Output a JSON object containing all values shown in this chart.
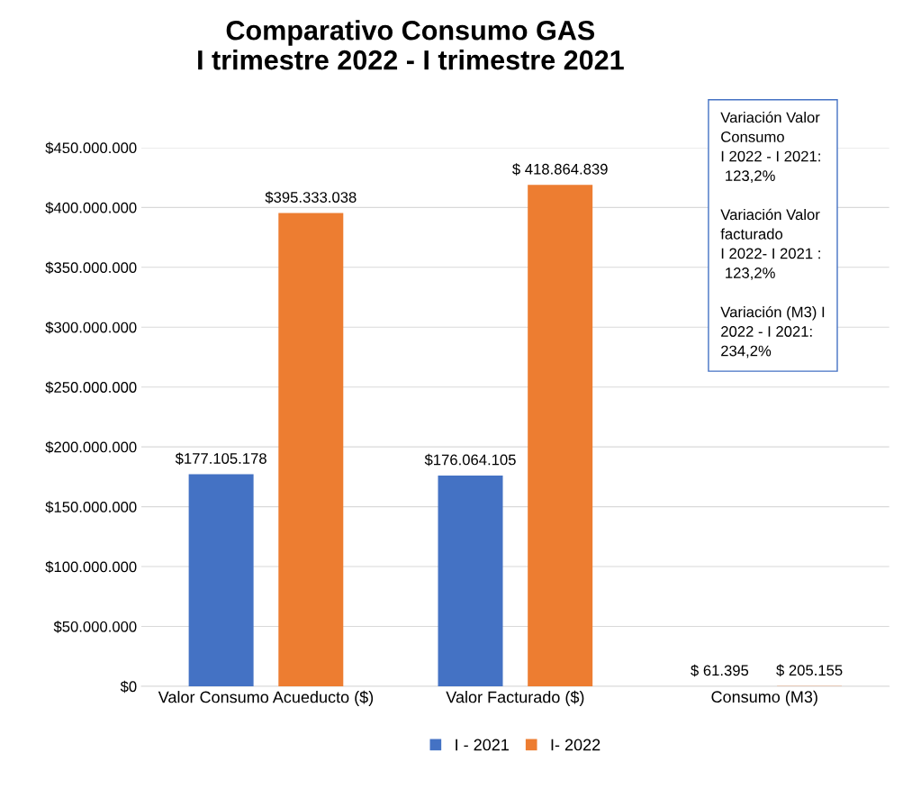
{
  "chart_data": {
    "type": "bar",
    "title": "Comparativo Consumo GAS\nI trimestre 2022 - I trimestre 2021",
    "categories": [
      "Valor Consumo Acueducto ($)",
      "Valor Facturado ($)",
      "Consumo (M3)"
    ],
    "series": [
      {
        "name": "I - 2021",
        "color": "#4472c4",
        "values": [
          177105178,
          176064105,
          61395
        ],
        "value_labels": [
          "$177.105.178",
          "$176.064.105",
          "$ 61.395"
        ]
      },
      {
        "name": "I- 2022",
        "color": "#ed7d31",
        "values": [
          395333038,
          418864839,
          205155
        ],
        "value_labels": [
          "$395.333.038",
          "$ 418.864.839",
          "$ 205.155"
        ]
      }
    ],
    "ylim": [
      0,
      450000000
    ],
    "yticks": [
      {
        "value": 0,
        "label": "$0"
      },
      {
        "value": 50000000,
        "label": "$50.000.000"
      },
      {
        "value": 100000000,
        "label": "$100.000.000"
      },
      {
        "value": 150000000,
        "label": "$150.000.000"
      },
      {
        "value": 200000000,
        "label": "$200.000.000"
      },
      {
        "value": 250000000,
        "label": "$250.000.000"
      },
      {
        "value": 300000000,
        "label": "$300.000.000"
      },
      {
        "value": 350000000,
        "label": "$350.000.000"
      },
      {
        "value": 400000000,
        "label": "$400.000.000"
      },
      {
        "value": 450000000,
        "label": "$450.000.000"
      }
    ],
    "grid": "y",
    "legend": "bottom",
    "annotations": [
      "Variación Valor\nConsumo\nI 2022 - I 2021:\n 123,2%\n\nVariación Valor\nfacturado\nI 2022- I 2021 :\n 123,2%\n\nVariación (M3) I\n2022 - I 2021:\n234,2%"
    ]
  }
}
